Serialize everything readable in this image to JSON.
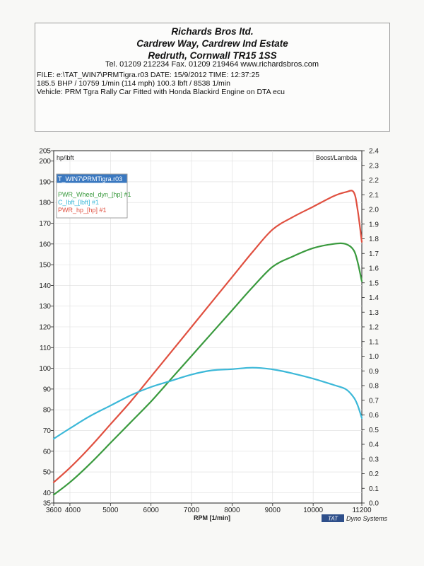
{
  "header": {
    "company_lines": [
      "Richards Bros ltd.",
      "Cardrew Way, Cardrew Ind Estate",
      "Redruth, Cornwall TR15 1SS"
    ],
    "contact": "Tel. 01209 212234   Fax. 01209 219464   www.richardsbros.com"
  },
  "info": {
    "lines": [
      "FILE: e:\\TAT_WIN7\\PRMTigra.r03  DATE: 15/9/2012  TIME: 12:37:25",
      "185.5 BHP / 10759 1/min (114 mph)    100.3 lbft / 8538 1/min",
      "Vehicle: PRM Tgra Rally Car Fitted with Honda Blackird Engine on DTA ecu"
    ]
  },
  "legend": {
    "file_label": "T_WIN7\\PRMTigra.r03",
    "entries": [
      {
        "label": "PWR_Wheel_dyn_[hp] #1",
        "color": "#3a9a3e"
      },
      {
        "label": "C_lbft_[lbft] #1",
        "color": "#3cb8d8"
      },
      {
        "label": "PWR_hp_[hp] #1",
        "color": "#e05040"
      }
    ]
  },
  "brand": {
    "box": "TAT",
    "text": "Dyno Systems"
  },
  "chart_data": {
    "type": "line",
    "xlabel": "RPM  [1/min]",
    "ylabel": "hp/lbft",
    "y2label": "Boost/Lambda",
    "xlim": [
      3600,
      11200
    ],
    "ylim": [
      35,
      205
    ],
    "y2lim": [
      0.0,
      2.4
    ],
    "x_ticks": [
      3600,
      4000,
      5000,
      6000,
      7000,
      8000,
      9000,
      10000,
      11200
    ],
    "y_ticks": [
      35,
      40,
      50,
      60,
      70,
      80,
      90,
      100,
      110,
      120,
      130,
      140,
      150,
      160,
      170,
      180,
      190,
      200,
      205
    ],
    "y2_ticks": [
      "0.0",
      "0.1",
      "0.2",
      "0.3",
      "0.4",
      "0.5",
      "0.6",
      "0.7",
      "0.8",
      "0.9",
      "1.0",
      "1.1",
      "1.2",
      "1.3",
      "1.4",
      "1.5",
      "1.6",
      "1.7",
      "1.8",
      "1.9",
      "2.0",
      "2.1",
      "2.2",
      "2.3",
      "2.4"
    ],
    "series": [
      {
        "name": "PWR_hp_[hp] #1",
        "color": "#e05040",
        "x": [
          3600,
          4000,
          4500,
          5000,
          5500,
          6000,
          6500,
          7000,
          7500,
          8000,
          8500,
          9000,
          9500,
          10000,
          10500,
          10800,
          11000,
          11100,
          11200
        ],
        "y": [
          45,
          52,
          62,
          73,
          84,
          96,
          108,
          120,
          132,
          144,
          156,
          167,
          173,
          178,
          183,
          185,
          185,
          176,
          161
        ]
      },
      {
        "name": "PWR_Wheel_dyn_[hp] #1",
        "color": "#3a9a3e",
        "x": [
          3600,
          4000,
          4500,
          5000,
          5500,
          6000,
          6500,
          7000,
          7500,
          8000,
          8500,
          9000,
          9500,
          10000,
          10500,
          10800,
          11000,
          11100,
          11200
        ],
        "y": [
          39,
          45,
          54,
          64,
          74,
          84,
          95,
          106,
          117,
          128,
          139,
          149,
          154,
          158,
          160,
          160,
          157,
          151,
          142
        ]
      },
      {
        "name": "C_lbft_[lbft] #1",
        "color": "#3cb8d8",
        "x": [
          3600,
          4000,
          4500,
          5000,
          5500,
          6000,
          6500,
          7000,
          7500,
          8000,
          8500,
          9000,
          9500,
          10000,
          10500,
          10800,
          11000,
          11100,
          11200
        ],
        "y": [
          66,
          71,
          77,
          82,
          87,
          91,
          94,
          97,
          99,
          99.6,
          100.3,
          99.5,
          97.5,
          95,
          92,
          90,
          86,
          82,
          76
        ]
      }
    ]
  }
}
